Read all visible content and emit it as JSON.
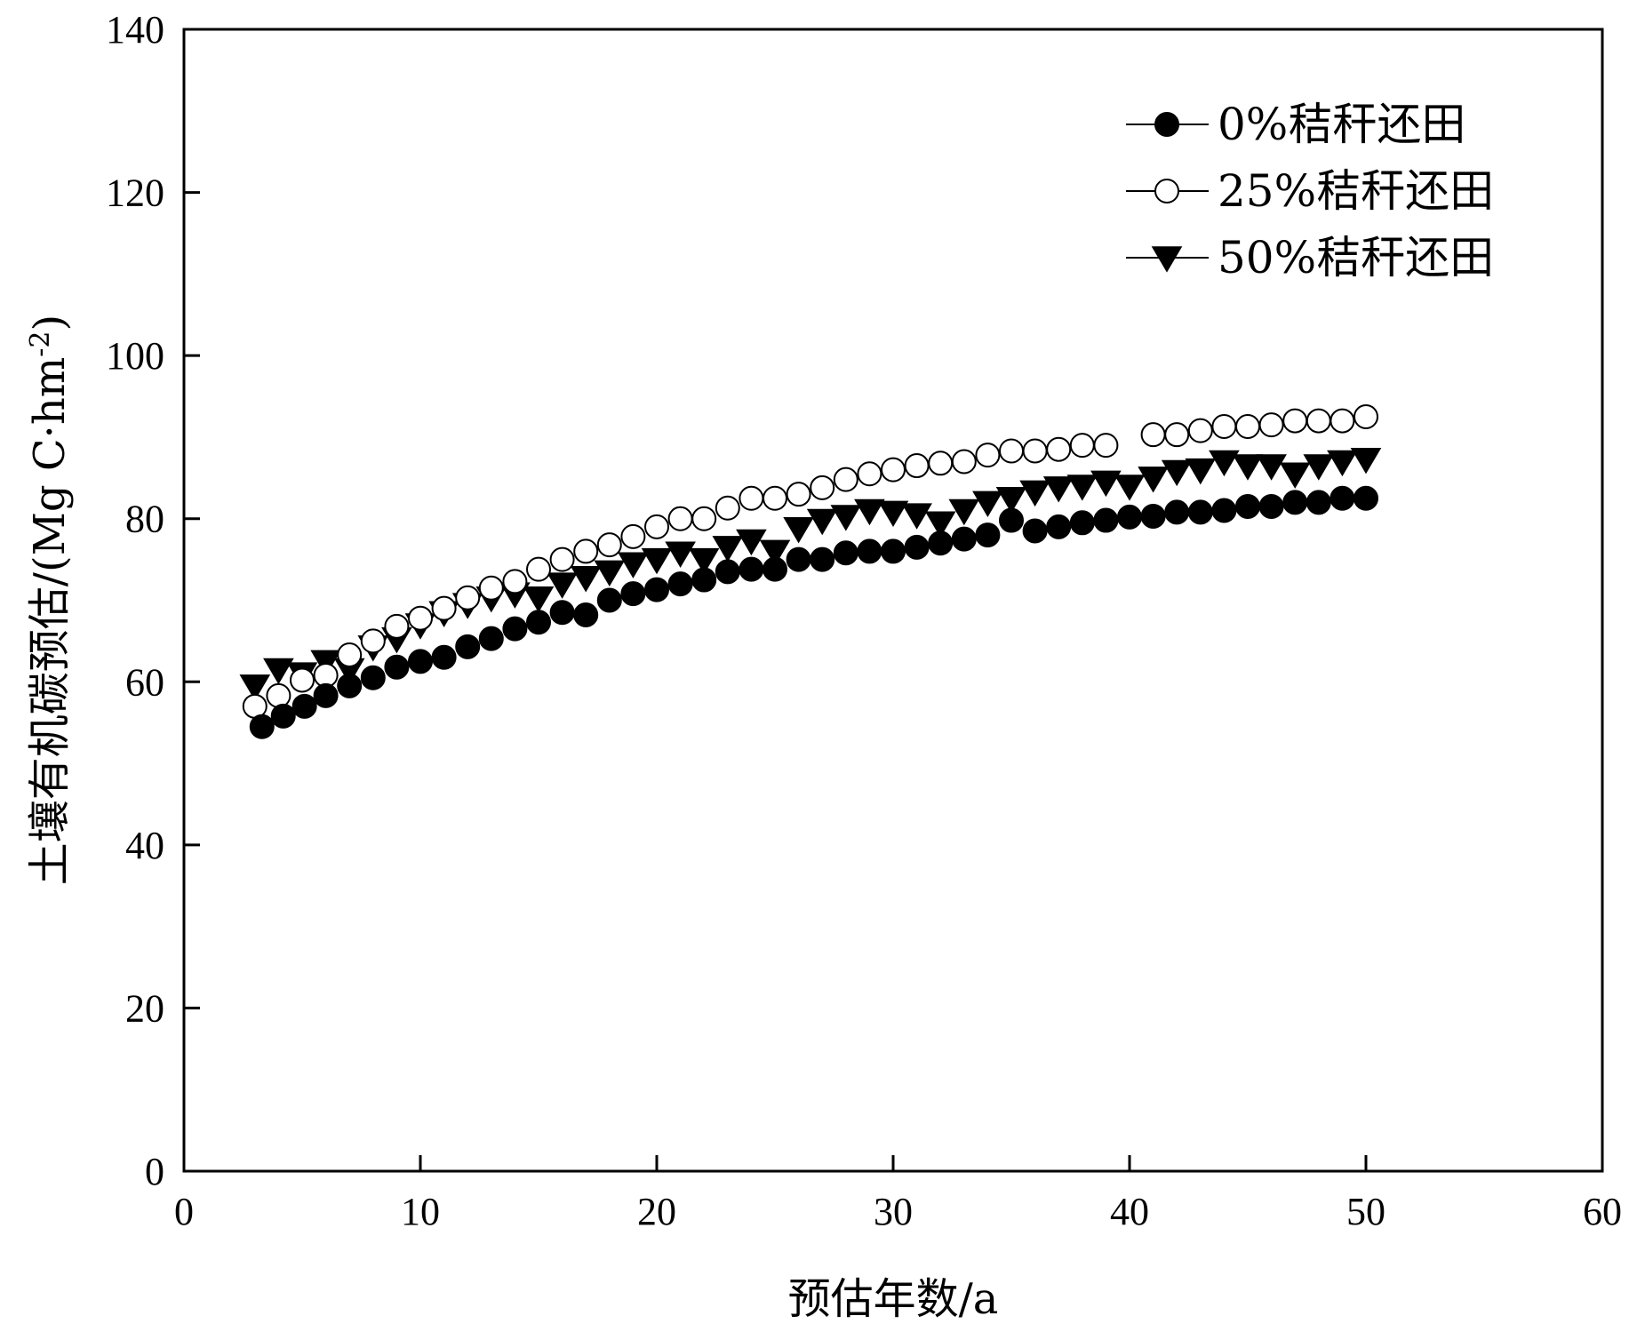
{
  "chart_data": {
    "type": "scatter",
    "title": "",
    "xlabel": "预估年数/a",
    "ylabel": "土壤有机碳预估/(Mg C·hm",
    "ylabel_superscript": "-2",
    "ylabel_close": ")",
    "xlim": [
      0,
      60
    ],
    "ylim": [
      0,
      140
    ],
    "x_ticks": [
      0,
      10,
      20,
      30,
      40,
      50,
      60
    ],
    "y_ticks": [
      0,
      20,
      40,
      60,
      80,
      100,
      120,
      140
    ],
    "grid": false,
    "legend_position": "top-right",
    "series": [
      {
        "name": "0%秸秆还田",
        "marker": "filled-circle",
        "color": "#000000",
        "points": [
          [
            3.3,
            54.5
          ],
          [
            4.2,
            55.8
          ],
          [
            5.1,
            57.0
          ],
          [
            6.0,
            58.3
          ],
          [
            7.0,
            59.5
          ],
          [
            8.0,
            60.5
          ],
          [
            9.0,
            61.8
          ],
          [
            10.0,
            62.5
          ],
          [
            11.0,
            63.0
          ],
          [
            12.0,
            64.3
          ],
          [
            13.0,
            65.3
          ],
          [
            14.0,
            66.5
          ],
          [
            15.0,
            67.3
          ],
          [
            16.0,
            68.5
          ],
          [
            17.0,
            68.2
          ],
          [
            18.0,
            70.0
          ],
          [
            19.0,
            70.8
          ],
          [
            20.0,
            71.3
          ],
          [
            21.0,
            72.0
          ],
          [
            22.0,
            72.5
          ],
          [
            23.0,
            73.5
          ],
          [
            24.0,
            73.8
          ],
          [
            25.0,
            73.8
          ],
          [
            26.0,
            75.0
          ],
          [
            27.0,
            75.0
          ],
          [
            28.0,
            75.8
          ],
          [
            29.0,
            76.0
          ],
          [
            30.0,
            76.0
          ],
          [
            31.0,
            76.5
          ],
          [
            32.0,
            77.0
          ],
          [
            33.0,
            77.5
          ],
          [
            34.0,
            78.0
          ],
          [
            35.0,
            79.8
          ],
          [
            36.0,
            78.5
          ],
          [
            37.0,
            79.0
          ],
          [
            38.0,
            79.5
          ],
          [
            39.0,
            79.8
          ],
          [
            40.0,
            80.2
          ],
          [
            41.0,
            80.3
          ],
          [
            42.0,
            80.8
          ],
          [
            43.0,
            80.8
          ],
          [
            44.0,
            81.0
          ],
          [
            45.0,
            81.5
          ],
          [
            46.0,
            81.5
          ],
          [
            47.0,
            82.0
          ],
          [
            48.0,
            82.0
          ],
          [
            49.0,
            82.5
          ],
          [
            50.0,
            82.5
          ]
        ]
      },
      {
        "name": "25%秸秆还田",
        "marker": "open-circle",
        "color": "#000000",
        "points": [
          [
            3.0,
            57.0
          ],
          [
            4.0,
            58.3
          ],
          [
            5.0,
            60.2
          ],
          [
            6.0,
            60.8
          ],
          [
            7.0,
            63.3
          ],
          [
            8.0,
            65.0
          ],
          [
            9.0,
            66.8
          ],
          [
            10.0,
            67.8
          ],
          [
            11.0,
            69.0
          ],
          [
            12.0,
            70.3
          ],
          [
            13.0,
            71.5
          ],
          [
            14.0,
            72.3
          ],
          [
            15.0,
            73.8
          ],
          [
            16.0,
            75.0
          ],
          [
            17.0,
            76.0
          ],
          [
            18.0,
            76.8
          ],
          [
            19.0,
            77.8
          ],
          [
            20.0,
            79.0
          ],
          [
            21.0,
            80.0
          ],
          [
            22.0,
            80.0
          ],
          [
            23.0,
            81.3
          ],
          [
            24.0,
            82.5
          ],
          [
            25.0,
            82.5
          ],
          [
            26.0,
            83.0
          ],
          [
            27.0,
            83.8
          ],
          [
            28.0,
            84.8
          ],
          [
            29.0,
            85.5
          ],
          [
            30.0,
            86.0
          ],
          [
            31.0,
            86.5
          ],
          [
            32.0,
            86.8
          ],
          [
            33.0,
            87.0
          ],
          [
            34.0,
            87.8
          ],
          [
            35.0,
            88.3
          ],
          [
            36.0,
            88.3
          ],
          [
            37.0,
            88.5
          ],
          [
            38.0,
            89.0
          ],
          [
            39.0,
            89.0
          ],
          [
            41.0,
            90.3
          ],
          [
            42.0,
            90.3
          ],
          [
            43.0,
            90.8
          ],
          [
            44.0,
            91.3
          ],
          [
            45.0,
            91.3
          ],
          [
            46.0,
            91.5
          ],
          [
            47.0,
            92.0
          ],
          [
            48.0,
            92.0
          ],
          [
            49.0,
            92.0
          ],
          [
            50.0,
            92.5
          ]
        ]
      },
      {
        "name": "50%秸秆还田",
        "marker": "filled-triangle-down",
        "color": "#000000",
        "points": [
          [
            3.0,
            59.5
          ],
          [
            4.0,
            61.5
          ],
          [
            5.0,
            61.0
          ],
          [
            6.0,
            62.5
          ],
          [
            7.0,
            61.5
          ],
          [
            8.0,
            64.3
          ],
          [
            9.0,
            65.3
          ],
          [
            10.0,
            67.0
          ],
          [
            11.0,
            68.5
          ],
          [
            12.0,
            69.5
          ],
          [
            13.0,
            70.3
          ],
          [
            14.0,
            70.8
          ],
          [
            15.0,
            70.3
          ],
          [
            16.0,
            72.0
          ],
          [
            17.0,
            72.8
          ],
          [
            18.0,
            73.5
          ],
          [
            19.0,
            74.5
          ],
          [
            20.0,
            75.0
          ],
          [
            21.0,
            75.8
          ],
          [
            22.0,
            75.0
          ],
          [
            23.0,
            76.5
          ],
          [
            24.0,
            77.3
          ],
          [
            25.0,
            76.0
          ],
          [
            26.0,
            78.8
          ],
          [
            27.0,
            79.8
          ],
          [
            28.0,
            80.3
          ],
          [
            29.0,
            81.0
          ],
          [
            30.0,
            80.8
          ],
          [
            31.0,
            80.5
          ],
          [
            32.0,
            79.5
          ],
          [
            33.0,
            81.0
          ],
          [
            34.0,
            82.0
          ],
          [
            35.0,
            82.5
          ],
          [
            36.0,
            83.3
          ],
          [
            37.0,
            83.8
          ],
          [
            38.0,
            84.0
          ],
          [
            39.0,
            84.5
          ],
          [
            40.0,
            84.0
          ],
          [
            41.0,
            85.0
          ],
          [
            42.0,
            85.8
          ],
          [
            43.0,
            86.0
          ],
          [
            44.0,
            87.0
          ],
          [
            45.0,
            86.5
          ],
          [
            46.0,
            86.5
          ],
          [
            47.0,
            85.5
          ],
          [
            48.0,
            86.5
          ],
          [
            49.0,
            87.0
          ],
          [
            50.0,
            87.3
          ]
        ]
      }
    ]
  }
}
